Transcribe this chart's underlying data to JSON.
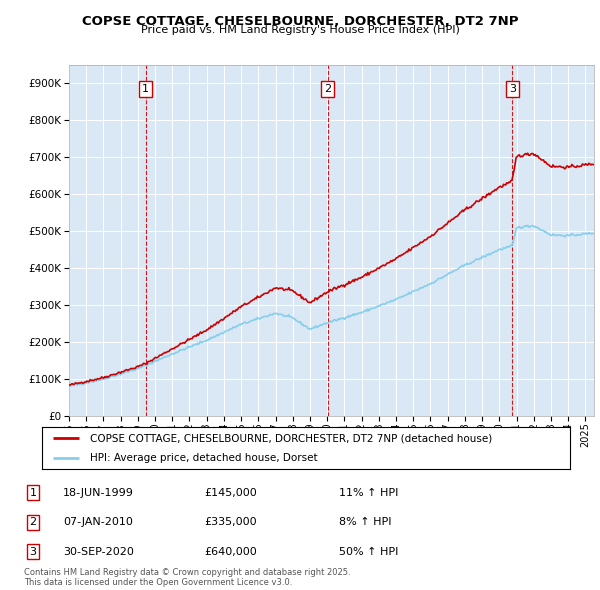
{
  "title1": "COPSE COTTAGE, CHESELBOURNE, DORCHESTER, DT2 7NP",
  "title2": "Price paid vs. HM Land Registry's House Price Index (HPI)",
  "legend_label1": "COPSE COTTAGE, CHESELBOURNE, DORCHESTER, DT2 7NP (detached house)",
  "legend_label2": "HPI: Average price, detached house, Dorset",
  "hpi_color": "#87CEEB",
  "sold_color": "#CC0000",
  "background_color": "#DAE8F5",
  "footer": "Contains HM Land Registry data © Crown copyright and database right 2025.\nThis data is licensed under the Open Government Licence v3.0.",
  "purchases": [
    {
      "label": "1",
      "date": "18-JUN-1999",
      "price": 145000,
      "hpi_pct": "11% ↑ HPI",
      "x": 1999.46
    },
    {
      "label": "2",
      "date": "07-JAN-2010",
      "price": 335000,
      "hpi_pct": "8% ↑ HPI",
      "x": 2010.02
    },
    {
      "label": "3",
      "date": "30-SEP-2020",
      "price": 640000,
      "hpi_pct": "50% ↑ HPI",
      "x": 2020.75
    }
  ],
  "ylim": [
    0,
    950000
  ],
  "xlim_start": 1995.0,
  "xlim_end": 2025.5,
  "yticks": [
    0,
    100000,
    200000,
    300000,
    400000,
    500000,
    600000,
    700000,
    800000,
    900000
  ]
}
